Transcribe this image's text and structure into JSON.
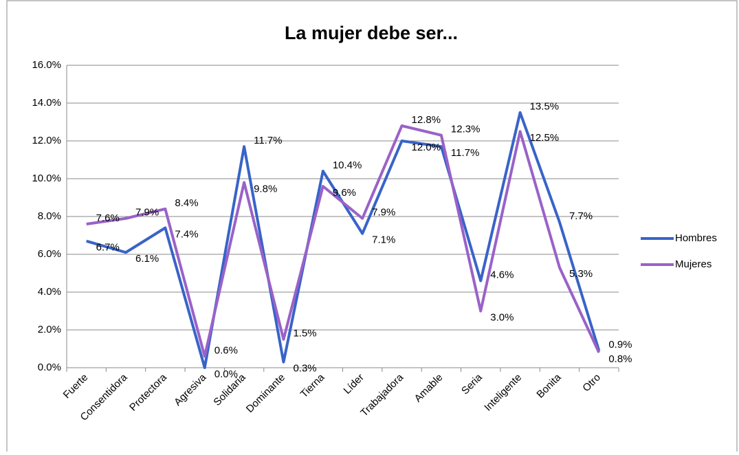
{
  "chart_data": {
    "type": "line",
    "title": "La mujer debe ser...",
    "categories": [
      "Fuerte",
      "Consentidora",
      "Protectora",
      "Agresiva",
      "Solidaria",
      "Dominante",
      "Tierna",
      "Líder",
      "Trabajadora",
      "Amable",
      "Seria",
      "Inteligente",
      "Bonita",
      "Otro"
    ],
    "series": [
      {
        "name": "Hombres",
        "color": "#3864c8",
        "values": [
          6.7,
          6.1,
          7.4,
          0.0,
          11.7,
          0.3,
          10.4,
          7.1,
          12.0,
          11.7,
          4.6,
          13.5,
          7.7,
          0.9
        ],
        "value_labels": [
          "6.7%",
          "6.1%",
          "7.4%",
          "0.0%",
          "11.7%",
          "0.3%",
          "10.4%",
          "7.1%",
          "12.0%",
          "11.7%",
          "4.6%",
          "13.5%",
          "7.7%",
          "0.9%"
        ]
      },
      {
        "name": "Mujeres",
        "color": "#9a62c8",
        "values": [
          7.6,
          7.9,
          8.4,
          0.6,
          9.8,
          1.5,
          9.6,
          7.9,
          12.8,
          12.3,
          3.0,
          12.5,
          5.3,
          0.8
        ],
        "value_labels": [
          "7.6%",
          "7.9%",
          "8.4%",
          "0.6%",
          "9.8%",
          "1.5%",
          "9.6%",
          "7.9%",
          "12.8%",
          "12.3%",
          "3.0%",
          "12.5%",
          "5.3%",
          "0.8%"
        ]
      }
    ],
    "ylim": [
      0,
      16
    ],
    "yticks": [
      {
        "value": 0,
        "label": "0.0%"
      },
      {
        "value": 2,
        "label": "2.0%"
      },
      {
        "value": 4,
        "label": "4.0%"
      },
      {
        "value": 6,
        "label": "6.0%"
      },
      {
        "value": 8,
        "label": "8.0%"
      },
      {
        "value": 10,
        "label": "10.0%"
      },
      {
        "value": 12,
        "label": "12.0%"
      },
      {
        "value": 14,
        "label": "14.0%"
      },
      {
        "value": 16,
        "label": "16.0%"
      }
    ],
    "grid": true,
    "legend": "right"
  }
}
